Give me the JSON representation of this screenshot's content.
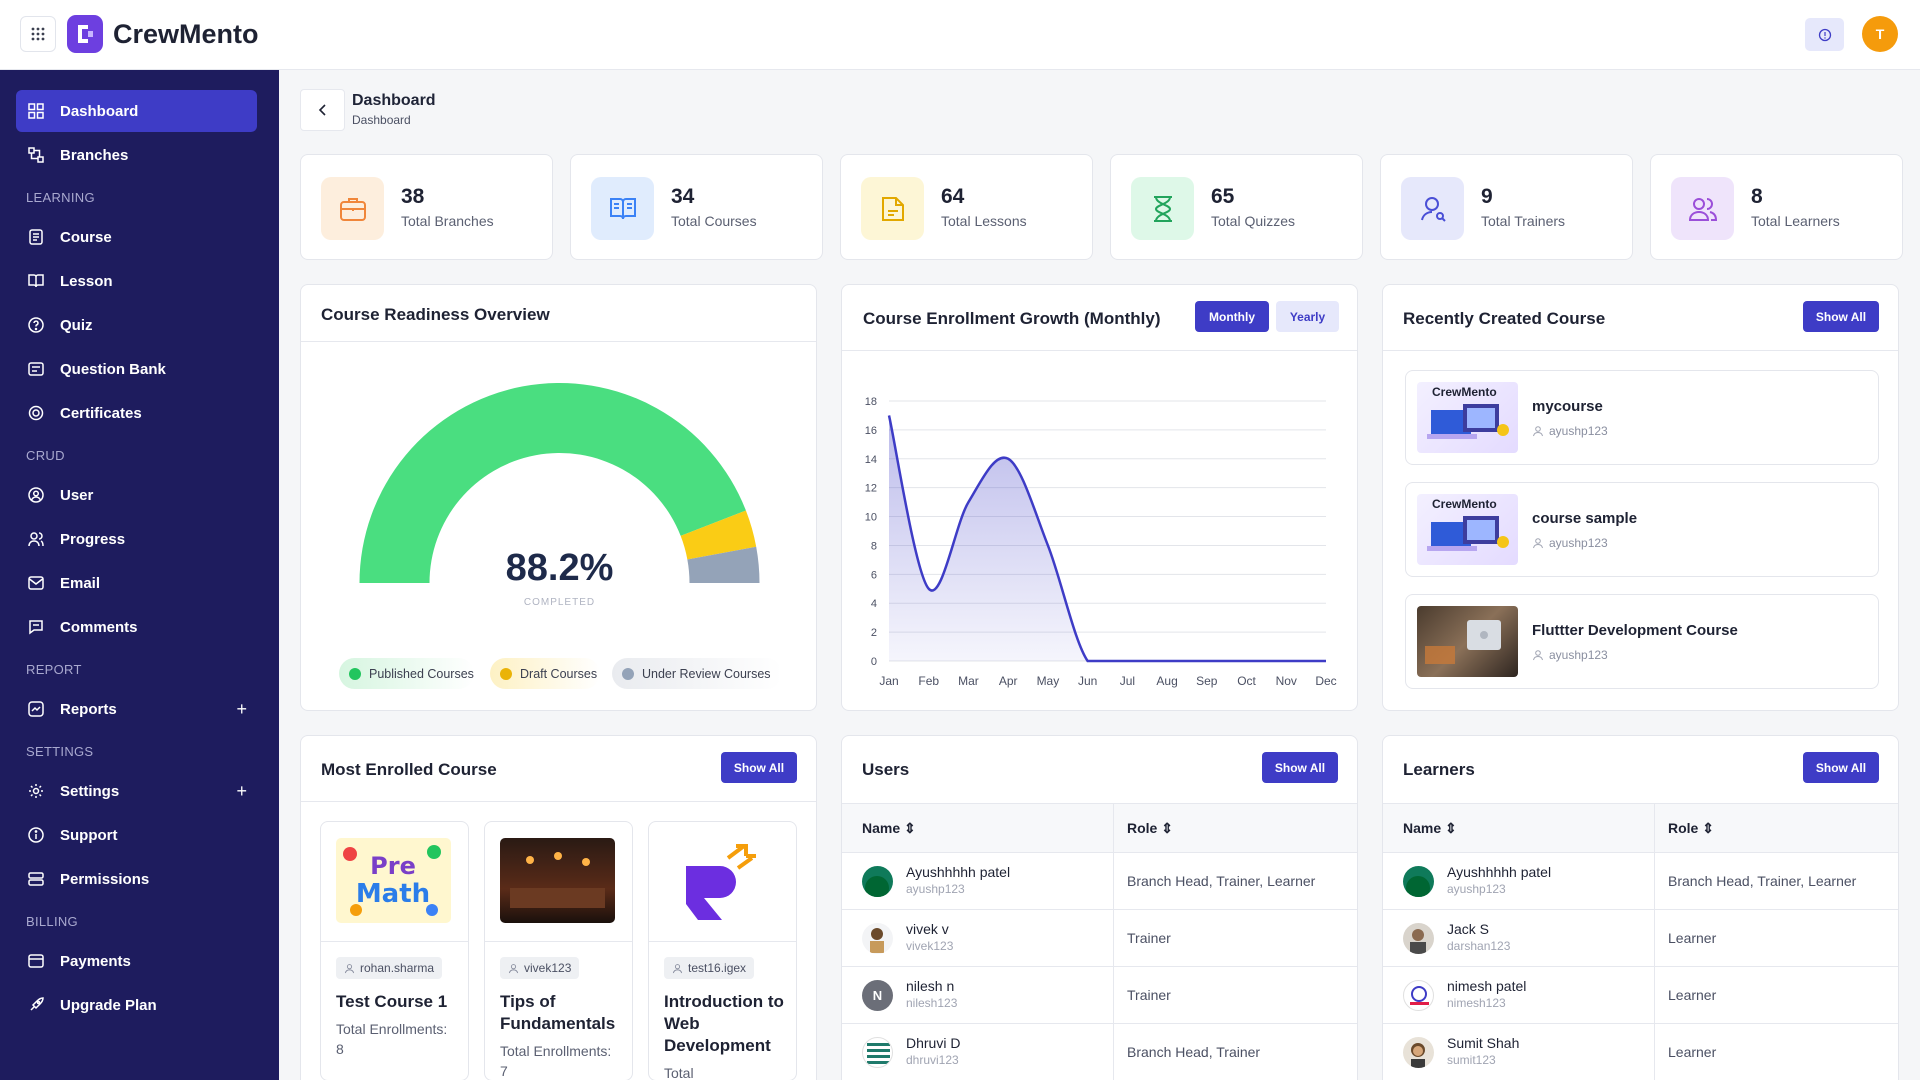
{
  "app": {
    "brand": "CrewMento",
    "avatar_letter": "T"
  },
  "sidebar": {
    "items": [
      {
        "label": "Dashboard"
      },
      {
        "label": "Branches"
      },
      {
        "section": "LEARNING"
      },
      {
        "label": "Course"
      },
      {
        "label": "Lesson"
      },
      {
        "label": "Quiz"
      },
      {
        "label": "Question Bank"
      },
      {
        "label": "Certificates"
      },
      {
        "section": "CRUD"
      },
      {
        "label": "User"
      },
      {
        "label": "Progress"
      },
      {
        "label": "Email"
      },
      {
        "label": "Comments"
      },
      {
        "section": "REPORT"
      },
      {
        "label": "Reports"
      },
      {
        "section": "SETTINGS"
      },
      {
        "label": "Settings"
      },
      {
        "label": "Support"
      },
      {
        "label": "Permissions"
      },
      {
        "section": "BILLING"
      },
      {
        "label": "Payments"
      },
      {
        "label": "Upgrade Plan"
      }
    ],
    "plus": "+"
  },
  "header": {
    "title": "Dashboard",
    "breadcrumb": "Dashboard"
  },
  "stats": [
    {
      "value": "38",
      "label": "Total Branches",
      "color": "#fdeedd"
    },
    {
      "value": "34",
      "label": "Total Courses",
      "color": "#e0ecfd"
    },
    {
      "value": "64",
      "label": "Total Lessons",
      "color": "#fdf6d6"
    },
    {
      "value": "65",
      "label": "Total Quizzes",
      "color": "#def8e8"
    },
    {
      "value": "9",
      "label": "Total Trainers",
      "color": "#e6e8fb"
    },
    {
      "value": "8",
      "label": "Total Learners",
      "color": "#efe4fb"
    }
  ],
  "readiness": {
    "title": "Course Readiness Overview",
    "percent": "88.2%",
    "completed_label": "COMPLETED",
    "published_fraction": 0.882,
    "draft_fraction": 0.06,
    "review_fraction": 0.058,
    "legend": [
      "Published Courses",
      "Draft Courses",
      "Under Review Courses"
    ],
    "colors": {
      "published": "#4ade80",
      "draft": "#facc15",
      "review": "#94a3b8"
    }
  },
  "enrollment": {
    "title": "Course Enrollment Growth (Monthly)",
    "monthly_label": "Monthly",
    "yearly_label": "Yearly"
  },
  "chart_data": {
    "type": "area",
    "categories": [
      "Jan",
      "Feb",
      "Mar",
      "Apr",
      "May",
      "Jun",
      "Jul",
      "Aug",
      "Sep",
      "Oct",
      "Nov",
      "Dec"
    ],
    "series": [
      {
        "values": [
          17,
          5,
          11,
          14,
          8,
          0,
          0,
          0,
          0,
          0,
          0,
          0
        ]
      }
    ],
    "y_ticks": [
      "0",
      "2",
      "4",
      "6",
      "8",
      "10",
      "12",
      "14",
      "16",
      "18"
    ],
    "ylim": [
      0,
      18
    ],
    "grid": true,
    "color": "#3e3cc6"
  },
  "recent": {
    "title": "Recently Created Course",
    "show_all": "Show All",
    "thumb_brand": "CrewMento",
    "items": [
      {
        "name": "mycourse",
        "user": "ayushp123"
      },
      {
        "name": "course sample",
        "user": "ayushp123"
      },
      {
        "name": "Fluttter Development Course",
        "user": "ayushp123"
      }
    ]
  },
  "most_enrolled": {
    "title": "Most Enrolled Course",
    "show_all": "Show All",
    "items": [
      {
        "user": "rohan.sharma",
        "title": "Test Course 1",
        "enrollments": "Total Enrollments: 8"
      },
      {
        "user": "vivek123",
        "title": "Tips of Fundamentals",
        "enrollments": "Total Enrollments: 7"
      },
      {
        "user": "test16.igex",
        "title": "Introduction to Web Development",
        "enrollments": "Total"
      }
    ]
  },
  "users": {
    "title": "Users",
    "show_all": "Show All",
    "col_name": "Name",
    "col_role": "Role",
    "rows": [
      {
        "name": "Ayushhhhh patel",
        "username": "ayushp123",
        "role": "Branch Head, Trainer, Learner"
      },
      {
        "name": "vivek v",
        "username": "vivek123",
        "role": "Trainer"
      },
      {
        "name": "nilesh n",
        "username": "nilesh123",
        "role": "Trainer",
        "initial": "N"
      },
      {
        "name": "Dhruvi D",
        "username": "dhruvi123",
        "role": "Branch Head, Trainer"
      }
    ]
  },
  "learners": {
    "title": "Learners",
    "show_all": "Show All",
    "col_name": "Name",
    "col_role": "Role",
    "rows": [
      {
        "name": "Ayushhhhh patel",
        "username": "ayushp123",
        "role": "Branch Head, Trainer, Learner"
      },
      {
        "name": "Jack S",
        "username": "darshan123",
        "role": "Learner"
      },
      {
        "name": "nimesh patel",
        "username": "nimesh123",
        "role": "Learner"
      },
      {
        "name": "Sumit Shah",
        "username": "sumit123",
        "role": "Learner"
      }
    ]
  }
}
